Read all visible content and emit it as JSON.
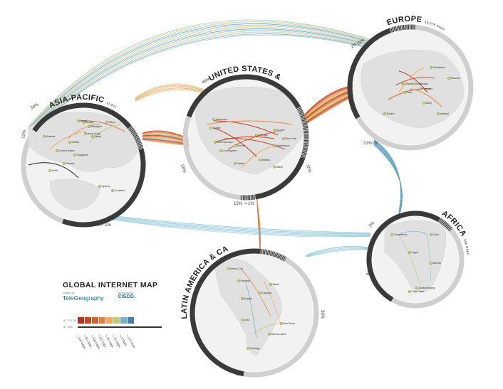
{
  "title": "GLOBAL INTERNET MAP",
  "credits": [
    {
      "small": "created by",
      "name": "TeleGeography"
    },
    {
      "small": "sponsored by",
      "name": "CISCO."
    }
  ],
  "legend": {
    "keys": [
      "BY COLOR",
      "BY SIZE"
    ],
    "bins": [
      "> 100 Gbps",
      "> 50 Gbps",
      "> 100 Gbps",
      "> 50 Gbps",
      "> 25 Gbps",
      "> 10 Gbps",
      "> 5 Gbps",
      "< 2.5 Gbps"
    ],
    "colors": [
      "#b52e1c",
      "#c8441f",
      "#d95d26",
      "#e8803a",
      "#f0a860",
      "#b7cf6e",
      "#6fb4c9",
      "#3e7fb6"
    ]
  },
  "regions": [
    {
      "name": "ASIA-PACIFIC",
      "sub": "11,611 Gbps",
      "pcts": [
        "34%",
        "12%",
        "32%",
        "> 1%"
      ]
    },
    {
      "name": "UNITED STATES & CANADA",
      "sub": "8,472 Gbps",
      "pcts": [
        "46%",
        "24%",
        "11%",
        "15%",
        "> 1%"
      ]
    },
    {
      "name": "EUROPE",
      "sub": "16,278 Gbps",
      "pcts": [
        "2%",
        "15%",
        "21%",
        "1%"
      ]
    },
    {
      "name": "AFRICA",
      "sub": "398 Gbps",
      "pcts": [
        "97%",
        "2%"
      ]
    },
    {
      "name": "LATIN AMERICA & CARIBBEAN",
      "sub": "1,382 Gbps",
      "pcts": [
        "30%",
        "70%"
      ]
    }
  ],
  "cities": {
    "asia": [
      "Beijing",
      "Shanghai",
      "Tokyo",
      "Hong Kong",
      "Taipei",
      "Seoul",
      "Manila",
      "Kuala Lumpur",
      "Singapore",
      "Jakarta",
      "Mumbai",
      "Sydney",
      "Auckland",
      "Perth"
    ],
    "us": [
      "Vancouver",
      "Seattle",
      "San Francisco",
      "Los Angeles",
      "Chicago",
      "Toronto",
      "New York",
      "Washington",
      "Atlanta",
      "Dallas",
      "Miami",
      "Denver"
    ],
    "europe": [
      "London",
      "Paris",
      "Amsterdam",
      "Frankfurt",
      "Stockholm",
      "Madrid",
      "Milan",
      "Moscow",
      "Istanbul"
    ],
    "africa": [
      "Casablanca",
      "Lagos",
      "Cairo",
      "Nairobi",
      "Johannesburg",
      "Cape Town"
    ],
    "latam": [
      "Mexico City",
      "Miami",
      "Bogota",
      "Caracas",
      "Lima",
      "Santiago",
      "Buenos Aires",
      "Sao Paulo",
      "Panama"
    ]
  }
}
